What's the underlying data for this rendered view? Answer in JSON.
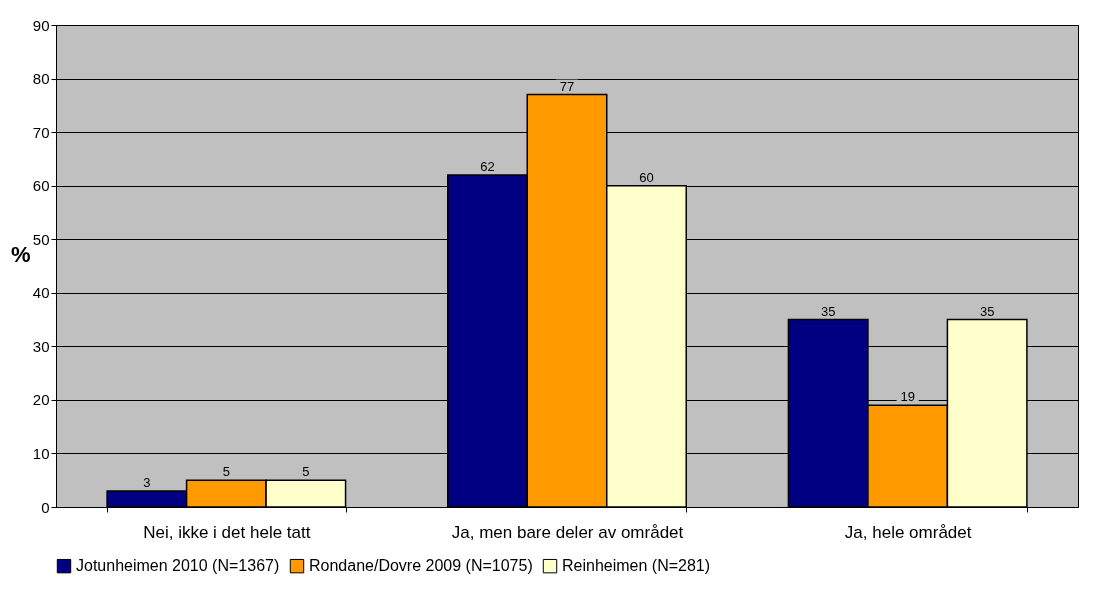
{
  "chart_data": {
    "type": "bar",
    "ylabel": "%",
    "categories": [
      "Nei, ikke i det hele tatt",
      "Ja, men bare deler av området",
      "Ja, hele området"
    ],
    "series": [
      {
        "name": "Jotunheimen 2010 (N=1367)",
        "color": "#000080",
        "values": [
          3,
          62,
          35
        ]
      },
      {
        "name": "Rondane/Dovre 2009 (N=1075)",
        "color": "#ff9900",
        "values": [
          5,
          77,
          19
        ]
      },
      {
        "name": "Reinheimen (N=281)",
        "color": "#ffffcc",
        "values": [
          5,
          60,
          35
        ]
      }
    ],
    "ylim": [
      0,
      90
    ],
    "yticks": [
      0,
      10,
      20,
      30,
      40,
      50,
      60,
      70,
      80,
      90
    ],
    "grid": "y",
    "legend": "bottom",
    "data_labels": true
  }
}
